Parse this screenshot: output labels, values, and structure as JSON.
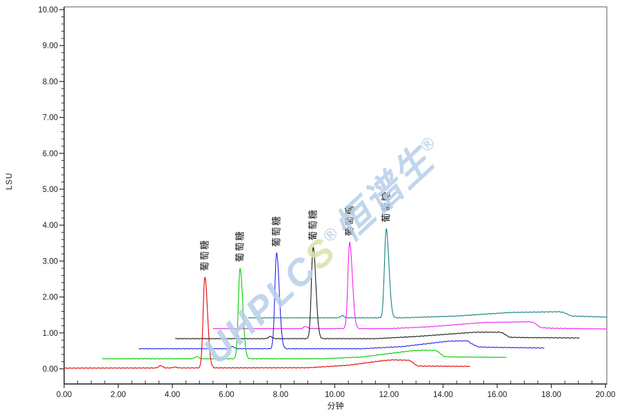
{
  "chart_data": {
    "type": "line",
    "title": "",
    "xlabel": "分钟",
    "ylabel": "LSU",
    "axes": {
      "x": {
        "min": 0,
        "max": 20.05,
        "tick_start": 0,
        "tick_end": 20,
        "major": 2,
        "minor": 0.5,
        "decimals": 2
      },
      "y": {
        "min": -0.42,
        "max": 10.08,
        "tick_start": 0,
        "tick_end": 10,
        "major": 1,
        "minor": 0.2,
        "decimals": 2
      }
    },
    "grid": false,
    "legend": "none",
    "series": [
      {
        "id": "teal",
        "color": "#158080",
        "baseline": [
          [
            6.8,
            1.42
          ],
          [
            12.5,
            1.42
          ],
          [
            14.5,
            1.47
          ],
          [
            16.5,
            1.57
          ],
          [
            18.3,
            1.59
          ],
          [
            18.45,
            1.57
          ],
          [
            18.75,
            1.47
          ],
          [
            19.2,
            1.46
          ],
          [
            20.05,
            1.44
          ]
        ],
        "peak": {
          "time": 11.9,
          "apex": 3.9,
          "label": "葡萄糖"
        },
        "bumps": [
          {
            "time": 10.28,
            "height": 0.06
          }
        ]
      },
      {
        "id": "magenta",
        "color": "#ee22ee",
        "baseline": [
          [
            5.5,
            1.12
          ],
          [
            12.0,
            1.12
          ],
          [
            13.5,
            1.17
          ],
          [
            15.5,
            1.29
          ],
          [
            17.2,
            1.31
          ],
          [
            17.35,
            1.29
          ],
          [
            17.6,
            1.15
          ],
          [
            18.0,
            1.13
          ],
          [
            20.05,
            1.11
          ]
        ],
        "peak": {
          "time": 10.55,
          "apex": 3.52,
          "label": "葡萄糖"
        },
        "bumps": [
          {
            "time": 8.92,
            "height": 0.06
          }
        ]
      },
      {
        "id": "black",
        "color": "#1a1a1a",
        "baseline": [
          [
            4.1,
            0.84
          ],
          [
            11.5,
            0.84
          ],
          [
            13.0,
            0.9
          ],
          [
            15.2,
            1.02
          ],
          [
            16.1,
            1.02
          ],
          [
            16.2,
            1.0
          ],
          [
            16.45,
            0.88
          ],
          [
            17.0,
            0.87
          ],
          [
            19.05,
            0.86
          ]
        ],
        "peak": {
          "time": 9.2,
          "apex": 3.4,
          "label": "葡萄糖"
        },
        "bumps": [
          {
            "time": 7.62,
            "height": 0.06
          }
        ]
      },
      {
        "id": "blue",
        "color": "#2222ee",
        "baseline": [
          [
            2.76,
            0.56
          ],
          [
            11.0,
            0.56
          ],
          [
            12.5,
            0.62
          ],
          [
            14.2,
            0.77
          ],
          [
            14.9,
            0.78
          ],
          [
            15.05,
            0.7
          ],
          [
            15.3,
            0.61
          ],
          [
            15.7,
            0.6
          ],
          [
            17.75,
            0.58
          ]
        ],
        "peak": {
          "time": 7.85,
          "apex": 3.22,
          "label": "葡萄糖"
        },
        "bumps": [
          {
            "time": 6.22,
            "height": 0.06
          }
        ]
      },
      {
        "id": "green",
        "color": "#00cc00",
        "baseline": [
          [
            1.4,
            0.28
          ],
          [
            9.5,
            0.28
          ],
          [
            11.0,
            0.33
          ],
          [
            12.8,
            0.5
          ],
          [
            13.3,
            0.52
          ],
          [
            13.75,
            0.51
          ],
          [
            14.05,
            0.34
          ],
          [
            14.4,
            0.33
          ],
          [
            16.35,
            0.32
          ]
        ],
        "peak": {
          "time": 6.5,
          "apex": 2.8,
          "label": "葡萄糖"
        },
        "bumps": [
          {
            "time": 4.9,
            "height": 0.06
          }
        ]
      },
      {
        "id": "red",
        "color": "#e40000",
        "baseline": [
          [
            0,
            0.02
          ],
          [
            9.0,
            0.03
          ],
          [
            10.5,
            0.1
          ],
          [
            11.8,
            0.23
          ],
          [
            12.15,
            0.25
          ],
          [
            12.7,
            0.24
          ],
          [
            12.78,
            0.23
          ],
          [
            13.05,
            0.08
          ],
          [
            13.4,
            0.075
          ],
          [
            15.0,
            0.07
          ]
        ],
        "peak": {
          "time": 5.2,
          "apex": 2.55,
          "label": "葡萄糖"
        },
        "bumps": [
          {
            "time": 3.57,
            "height": 0.065
          },
          {
            "time": 4.1,
            "height": 0.025
          }
        ]
      }
    ]
  },
  "watermark": {
    "angle_deg": -43,
    "parts": [
      {
        "text": "UHPLC",
        "color": "#b7cfe9",
        "sup": false
      },
      {
        "text": "S",
        "color": "#d9e3a6",
        "sup": false
      },
      {
        "text": "®",
        "color": "#b7cfe9",
        "sup": true
      },
      {
        "text": "恒谱生",
        "color": "#b7cfe9",
        "sup": false
      },
      {
        "text": "®",
        "color": "#b7cfe9",
        "sup": true
      }
    ]
  }
}
